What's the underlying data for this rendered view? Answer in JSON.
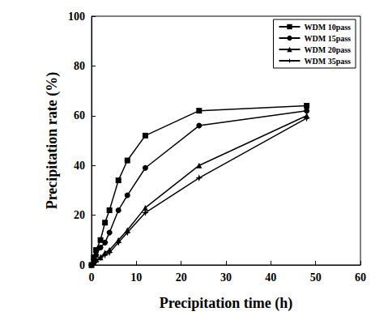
{
  "chart_data": {
    "type": "line",
    "x_label": "Precipitation time (h)",
    "y_label": "Precipitation rate (%)",
    "xlim": [
      0,
      60
    ],
    "xticks": [
      0,
      10,
      20,
      30,
      40,
      50,
      60
    ],
    "ylim": [
      0,
      100
    ],
    "yticks": [
      0,
      20,
      40,
      60,
      80,
      100
    ],
    "grid": false,
    "legend": "upper right",
    "series": [
      {
        "name": "WDM 10pass",
        "color": "#000000",
        "marker": "square",
        "line_style": "solid",
        "x": [
          0,
          0.5,
          1,
          2,
          3,
          4,
          6,
          8,
          12,
          24,
          48
        ],
        "values": [
          0,
          3,
          6,
          10,
          17,
          22,
          34,
          42,
          52,
          62,
          64
        ]
      },
      {
        "name": "WDM 15pass",
        "color": "#000000",
        "marker": "circle",
        "line_style": "solid",
        "x": [
          0,
          0.5,
          1,
          2,
          3,
          4,
          6,
          8,
          12,
          24,
          48
        ],
        "values": [
          0,
          2,
          4,
          7,
          9,
          13,
          22,
          28,
          39,
          56,
          62
        ]
      },
      {
        "name": "WDM 20pass",
        "color": "#000000",
        "marker": "triangle",
        "line_style": "solid",
        "x": [
          0,
          0.5,
          1,
          2,
          3,
          4,
          6,
          8,
          12,
          24,
          48
        ],
        "values": [
          0,
          1,
          2,
          3,
          5,
          6,
          10,
          14,
          23,
          40,
          60
        ]
      },
      {
        "name": "WDM 35pass",
        "color": "#000000",
        "marker": "star",
        "line_style": "solid",
        "x": [
          0,
          0.5,
          1,
          2,
          3,
          4,
          6,
          8,
          12,
          24,
          48
        ],
        "values": [
          0,
          1,
          1.5,
          3,
          4,
          5,
          9,
          13,
          21,
          35,
          59
        ]
      }
    ]
  }
}
